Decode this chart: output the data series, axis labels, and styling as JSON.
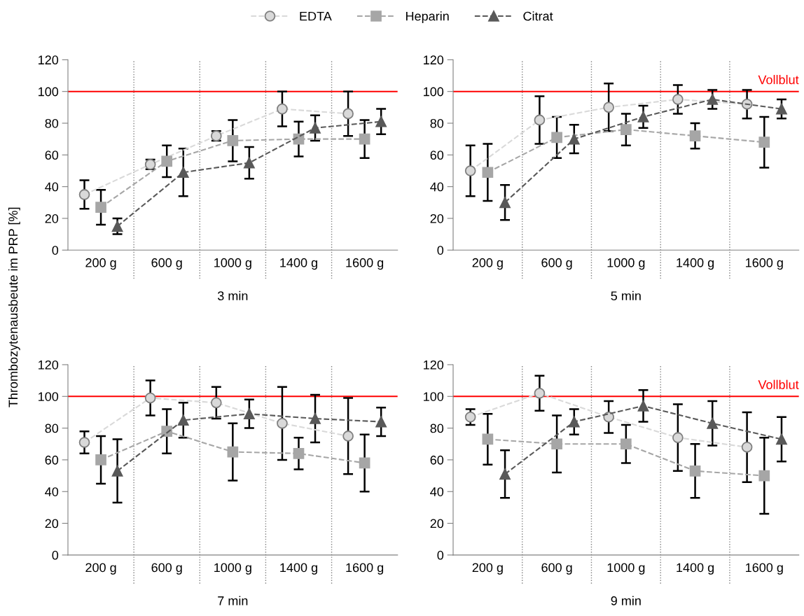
{
  "chart_data": [
    {
      "type": "line",
      "xlabel": "3 min",
      "ylabel": "Thrombozytenausbeute im PRP [%]",
      "categories": [
        "200 g",
        "600 g",
        "1000 g",
        "1400 g",
        "1600 g"
      ],
      "ylim": [
        0,
        120
      ],
      "yticks": [
        0,
        20,
        40,
        60,
        80,
        100,
        120
      ],
      "line_style": "dashed",
      "legend": "top",
      "grid": false,
      "series": [
        {
          "name": "EDTA",
          "color": "#d9d9d9",
          "marker": "circle",
          "values": [
            35,
            54,
            72,
            89,
            86
          ],
          "errors": [
            9,
            3,
            3,
            11,
            14
          ]
        },
        {
          "name": "Heparin",
          "color": "#a6a6a6",
          "marker": "square",
          "values": [
            27,
            56,
            69,
            70,
            70
          ],
          "errors": [
            11,
            10,
            13,
            11,
            12
          ]
        },
        {
          "name": "Citrat",
          "color": "#595959",
          "marker": "triangle",
          "values": [
            15,
            49,
            55,
            77,
            81
          ],
          "errors": [
            5,
            15,
            10,
            8,
            8
          ]
        }
      ],
      "ref_lines": [
        {
          "axis": "y",
          "value": 100,
          "color": "#ff0000"
        }
      ]
    },
    {
      "type": "line",
      "xlabel": "5 min",
      "categories": [
        "200 g",
        "600 g",
        "1000 g",
        "1400 g",
        "1600 g"
      ],
      "ylim": [
        0,
        120
      ],
      "yticks": [
        0,
        20,
        40,
        60,
        80,
        100,
        120
      ],
      "line_style": "dashed",
      "grid": false,
      "series": [
        {
          "color": "#d9d9d9",
          "marker": "circle",
          "values": [
            50,
            82,
            90,
            95,
            92
          ],
          "errors": [
            16,
            15,
            15,
            9,
            9
          ]
        },
        {
          "color": "#a6a6a6",
          "marker": "square",
          "values": [
            49,
            71,
            76,
            72,
            68
          ],
          "errors": [
            18,
            13,
            10,
            8,
            16
          ]
        },
        {
          "color": "#595959",
          "marker": "triangle",
          "values": [
            30,
            70,
            84,
            95,
            89
          ],
          "errors": [
            11,
            9,
            7,
            6,
            6
          ]
        }
      ],
      "ref_lines": [
        {
          "axis": "y",
          "value": 100,
          "color": "#ff0000",
          "label": "Vollblut"
        }
      ]
    },
    {
      "type": "line",
      "xlabel": "7 min",
      "categories": [
        "200 g",
        "600 g",
        "1000 g",
        "1400 g",
        "1600 g"
      ],
      "ylim": [
        0,
        120
      ],
      "yticks": [
        0,
        20,
        40,
        60,
        80,
        100,
        120
      ],
      "line_style": "dashed",
      "grid": false,
      "series": [
        {
          "color": "#d9d9d9",
          "marker": "circle",
          "values": [
            71,
            99,
            96,
            83,
            75
          ],
          "errors": [
            7,
            11,
            10,
            23,
            24
          ]
        },
        {
          "color": "#a6a6a6",
          "marker": "square",
          "values": [
            60,
            78,
            65,
            64,
            58
          ],
          "errors": [
            15,
            14,
            18,
            10,
            18
          ]
        },
        {
          "color": "#595959",
          "marker": "triangle",
          "values": [
            53,
            85,
            89,
            86,
            84
          ],
          "errors": [
            20,
            11,
            9,
            15,
            9
          ]
        }
      ],
      "ref_lines": [
        {
          "axis": "y",
          "value": 100,
          "color": "#ff0000"
        }
      ]
    },
    {
      "type": "line",
      "xlabel": "9 min",
      "categories": [
        "200 g",
        "600 g",
        "1000 g",
        "1400 g",
        "1600 g"
      ],
      "ylim": [
        0,
        120
      ],
      "yticks": [
        0,
        20,
        40,
        60,
        80,
        100,
        120
      ],
      "line_style": "dashed",
      "grid": false,
      "series": [
        {
          "color": "#d9d9d9",
          "marker": "circle",
          "values": [
            87,
            102,
            87,
            74,
            68
          ],
          "errors": [
            5,
            11,
            10,
            21,
            22
          ]
        },
        {
          "color": "#a6a6a6",
          "marker": "square",
          "values": [
            73,
            70,
            70,
            53,
            50
          ],
          "errors": [
            16,
            18,
            12,
            17,
            24
          ]
        },
        {
          "color": "#595959",
          "marker": "triangle",
          "values": [
            51,
            84,
            94,
            83,
            73
          ],
          "errors": [
            15,
            8,
            10,
            14,
            14
          ]
        }
      ],
      "ref_lines": [
        {
          "axis": "y",
          "value": 100,
          "color": "#ff0000",
          "label": "Vollblut"
        }
      ]
    }
  ]
}
